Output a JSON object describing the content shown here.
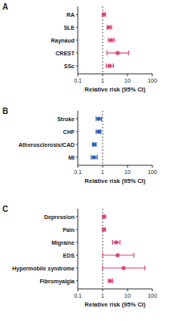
{
  "chart_data": [
    {
      "type": "forest",
      "title": "A",
      "orientation": "horizontal",
      "log": "x",
      "color": "#e0457b",
      "marker": "circle",
      "line_style": "dashed",
      "categories": [
        "RA",
        "SLE",
        "Raynaud",
        "CREST",
        "SSc"
      ],
      "values": [
        1.1,
        1.8,
        2.2,
        4.0,
        1.9
      ],
      "lower": [
        1.0,
        1.5,
        1.7,
        1.5,
        1.4
      ],
      "upper": [
        1.3,
        2.3,
        2.9,
        11.0,
        2.7
      ],
      "reference_line": 1,
      "x_label": "Relative risk (95% CI)",
      "xlim": [
        0.1,
        100
      ],
      "xticks": [
        0.1,
        1,
        10,
        100
      ]
    },
    {
      "type": "forest",
      "title": "B",
      "orientation": "horizontal",
      "log": "x",
      "color": "#2a5fc0",
      "marker": "circle",
      "line_style": "dashed",
      "categories": [
        "Stroke",
        "CHF",
        "Atherosclerosis/CAD",
        "MI"
      ],
      "values": [
        0.7,
        0.7,
        0.45,
        0.45
      ],
      "lower": [
        0.55,
        0.55,
        0.4,
        0.35
      ],
      "upper": [
        0.9,
        0.85,
        0.55,
        0.6
      ],
      "reference_line": 1,
      "x_label": "Relative risk (95% CI)",
      "xlim": [
        0.1,
        100
      ],
      "xticks": [
        0.1,
        1,
        10,
        100
      ]
    },
    {
      "type": "forest",
      "title": "C",
      "orientation": "horizontal",
      "log": "x",
      "color": "#e0457b",
      "marker": "circle",
      "line_style": "dashed",
      "categories": [
        "Depression",
        "Pain",
        "Migraine",
        "EDS",
        "Hypermobile syndrome",
        "Fibromyalgia"
      ],
      "values": [
        1.15,
        1.1,
        3.5,
        4.0,
        7.0,
        2.0
      ],
      "lower": [
        1.0,
        1.0,
        2.5,
        1.0,
        1.0,
        1.7
      ],
      "upper": [
        1.3,
        1.3,
        5.0,
        18.0,
        50.0,
        2.5
      ],
      "reference_line": 1,
      "x_label": "Relative risk (95% CI)",
      "xlim": [
        0.1,
        100
      ],
      "xticks": [
        0.1,
        1,
        10,
        100
      ]
    }
  ]
}
